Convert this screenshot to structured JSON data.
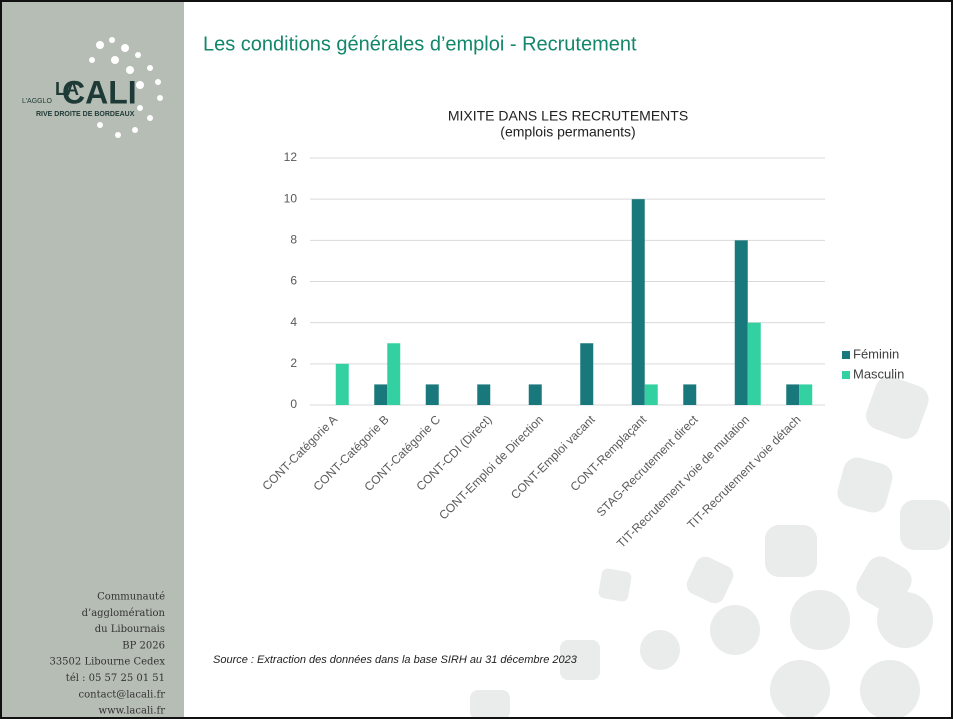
{
  "slide": {
    "title": "Les conditions générales d’emploi - Recrutement",
    "logo": {
      "la": "LA",
      "cali": "CALI",
      "agglo": "L’AGGLO",
      "tagline": "RIVE DROITE DE BORDEAUX"
    },
    "address": [
      "Communauté",
      "d’agglomération",
      "du Libournais",
      "BP 2026",
      "33502 Libourne Cedex",
      "tél : 05 57 25 01 51",
      "contact@lacali.fr",
      "www.lacali.fr"
    ],
    "source": "Source : Extraction des données dans la base SIRH au 31 décembre 2023"
  },
  "chart_data": {
    "type": "bar",
    "title": "MIXITE DANS LES RECRUTEMENTS",
    "subtitle": "(emplois permanents)",
    "categories": [
      "CONT-Catégorie A",
      "CONT-Catégorie B",
      "CONT-Catégorie C",
      "CONT-CDI (Direct)",
      "CONT-Emploi de Direction",
      "CONT-Emploi vacant",
      "CONT-Remplaçant",
      "STAG-Recrutement direct",
      "TIT-Recrutement voie de mutation",
      "TIT-Recrutement voie détach"
    ],
    "series": [
      {
        "name": "Féminin",
        "color": "#18787b",
        "values": [
          0,
          1,
          1,
          1,
          1,
          3,
          10,
          1,
          8,
          1
        ]
      },
      {
        "name": "Masculin",
        "color": "#33d1a1",
        "values": [
          2,
          3,
          0,
          0,
          0,
          0,
          1,
          0,
          4,
          1
        ]
      }
    ],
    "ylim": [
      0,
      12
    ],
    "yticks": [
      0,
      2,
      4,
      6,
      8,
      10,
      12
    ],
    "grid": true,
    "legend": "right"
  }
}
